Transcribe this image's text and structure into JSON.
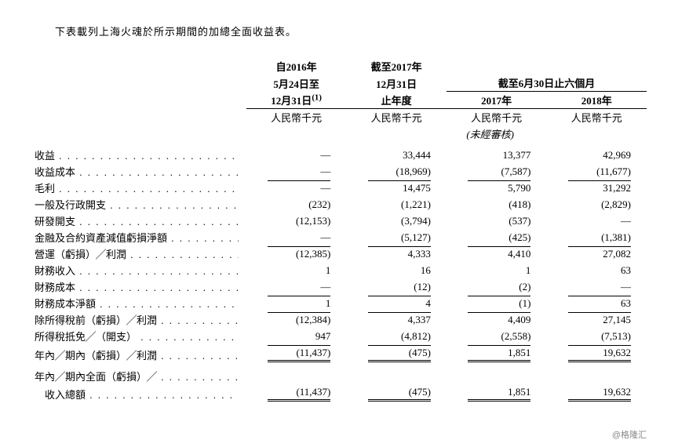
{
  "intro": "下表載列上海火魂於所示期間的加總全面收益表。",
  "headers": {
    "col1_line1": "自2016年",
    "col1_line2": "5月24日至",
    "col1_line3": "12月31日",
    "col1_sup": "(1)",
    "col2_line1": "截至2017年",
    "col2_line2": "12月31日",
    "col2_line3": "止年度",
    "span34": "截至6月30日止六個月",
    "col3": "2017年",
    "col4": "2018年",
    "unit": "人民幣千元",
    "unaudited": "(未經審核)"
  },
  "rows": [
    {
      "label": "收益",
      "v": [
        "—",
        "33,444",
        "13,377",
        "42,969"
      ]
    },
    {
      "label": "收益成本",
      "v": [
        "—",
        "(18,969)",
        "(7,587)",
        "(11,677)"
      ],
      "after": "rule"
    },
    {
      "label": "毛利",
      "v": [
        "—",
        "14,475",
        "5,790",
        "31,292"
      ],
      "top": true
    },
    {
      "label": "一般及行政開支",
      "v": [
        "(232)",
        "(1,221)",
        "(418)",
        "(2,829)"
      ]
    },
    {
      "label": "研發開支",
      "v": [
        "(12,153)",
        "(3,794)",
        "(537)",
        "—"
      ]
    },
    {
      "label": "金融及合約資產減值虧損淨額",
      "v": [
        "—",
        "(5,127)",
        "(425)",
        "(1,381)"
      ],
      "after": "rule"
    },
    {
      "label": "營運（虧損）╱利潤",
      "v": [
        "(12,385)",
        "4,333",
        "4,410",
        "27,082"
      ],
      "top": true
    },
    {
      "label": "財務收入",
      "v": [
        "1",
        "16",
        "1",
        "63"
      ]
    },
    {
      "label": "財務成本",
      "v": [
        "—",
        "(12)",
        "(2)",
        "—"
      ],
      "after": "rule"
    },
    {
      "label": "財務成本淨額",
      "v": [
        "1",
        "4",
        "(1)",
        "63"
      ],
      "top": true,
      "after": "rule"
    },
    {
      "label": "除所得稅前（虧損）╱利潤",
      "v": [
        "(12,384)",
        "4,337",
        "4,409",
        "27,145"
      ],
      "top": true
    },
    {
      "label": "所得稅抵免╱（開支）",
      "v": [
        "947",
        "(4,812)",
        "(2,558)",
        "(7,513)"
      ],
      "after": "rule"
    },
    {
      "label": "年內╱期內（虧損）╱利潤",
      "v": [
        "(11,437)",
        "(475)",
        "1,851",
        "19,632"
      ],
      "top": true,
      "dbl": true
    },
    {
      "label": "年內╱期內全面（虧損）╱",
      "v": [
        "",
        "",
        "",
        ""
      ],
      "nodots": false,
      "blank": true
    },
    {
      "label": "　收入總額",
      "v": [
        "(11,437)",
        "(475)",
        "1,851",
        "19,632"
      ],
      "dbl": true
    }
  ],
  "watermark": "@格隆汇"
}
